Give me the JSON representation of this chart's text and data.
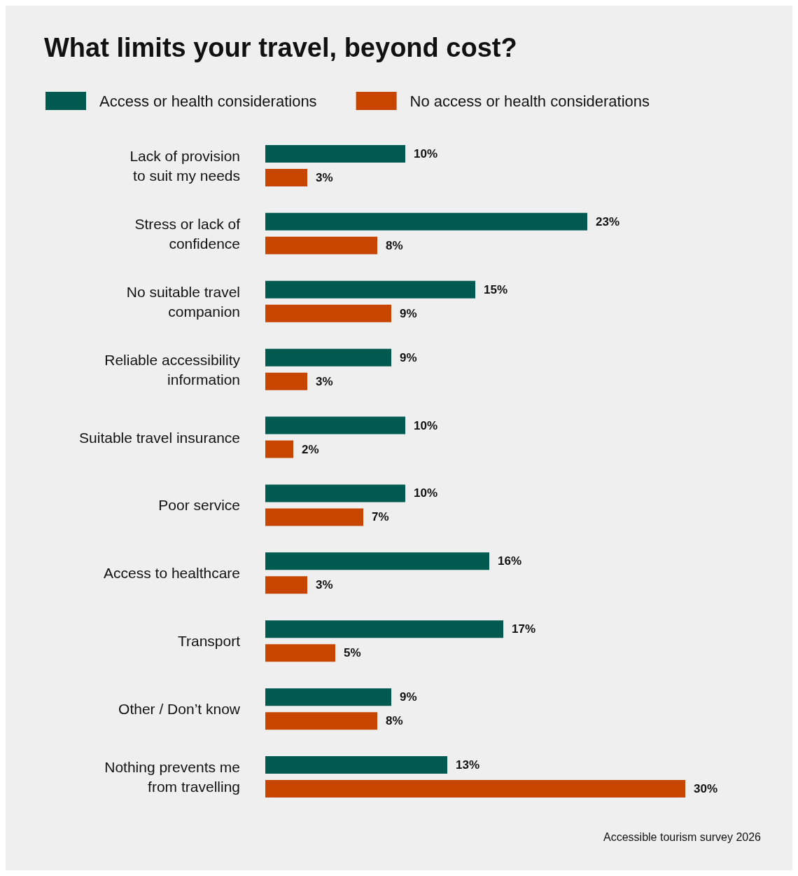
{
  "chart_data": {
    "type": "bar",
    "orientation": "horizontal",
    "title": "What limits your travel, beyond cost?",
    "categories": [
      "Lack of provision\nto suit my needs",
      "Stress or lack of\nconfidence",
      "No suitable travel\ncompanion",
      "Reliable accessibility\ninformation",
      "Suitable travel insurance",
      "Poor service",
      "Access to healthcare",
      "Transport",
      "Other / Don’t know",
      "Nothing prevents me\nfrom travelling"
    ],
    "series": [
      {
        "name": "Access or health considerations",
        "color": "#005a50",
        "values": [
          10,
          23,
          15,
          9,
          10,
          10,
          16,
          17,
          9,
          13
        ],
        "value_labels": [
          "10%",
          "23%",
          "15%",
          "9%",
          "10%",
          "10%",
          "16%",
          "17%",
          "9%",
          "13%"
        ]
      },
      {
        "name": "No access or health considerations",
        "color": "#c84500",
        "values": [
          3,
          8,
          9,
          3,
          2,
          7,
          3,
          5,
          8,
          30
        ],
        "value_labels": [
          "3%",
          "8%",
          "9%",
          "3%",
          "2%",
          "7%",
          "3%",
          "5%",
          "8%",
          "30%"
        ]
      }
    ],
    "legend": "top left",
    "annotations": [
      "Accessible tourism survey 2026"
    ]
  }
}
